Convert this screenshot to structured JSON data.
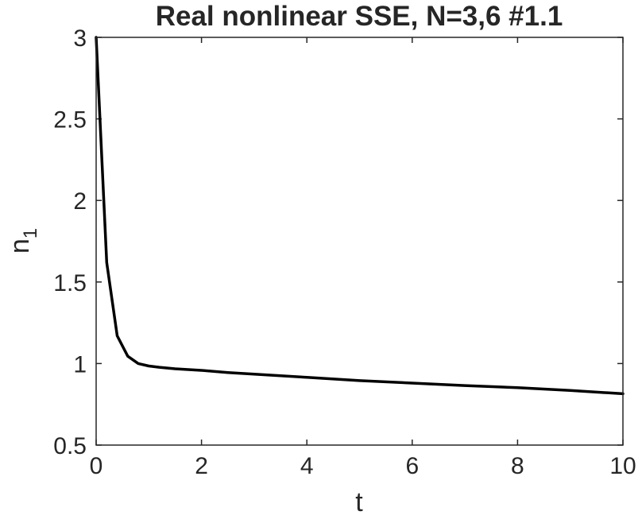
{
  "chart_data": {
    "type": "line",
    "title": "Real nonlinear SSE, N=3,6 #1.1",
    "xlabel": "t",
    "ylabel": "n",
    "ylabel_subscript": "1",
    "xlim": [
      0,
      10
    ],
    "ylim": [
      0.5,
      3
    ],
    "xticks": [
      0,
      2,
      4,
      6,
      8,
      10
    ],
    "xtick_labels": [
      "0",
      "2",
      "4",
      "6",
      "8",
      "10"
    ],
    "yticks": [
      0.5,
      1,
      1.5,
      2,
      2.5,
      3
    ],
    "ytick_labels": [
      "0.5",
      "1",
      "1.5",
      "2",
      "2.5",
      "3"
    ],
    "grid": false,
    "colors": {
      "line": "#000000",
      "axes": "#262626",
      "background": "#ffffff"
    },
    "series": [
      {
        "x": [
          0,
          0.2,
          0.4,
          0.6,
          0.8,
          1.0,
          1.2,
          1.5,
          2.0,
          2.5,
          3.0,
          4.0,
          5.0,
          6.0,
          7.0,
          8.0,
          9.0,
          10.0
        ],
        "y": [
          3.0,
          1.62,
          1.17,
          1.045,
          1.0,
          0.985,
          0.977,
          0.968,
          0.958,
          0.945,
          0.935,
          0.915,
          0.895,
          0.88,
          0.865,
          0.852,
          0.835,
          0.815
        ]
      }
    ]
  }
}
